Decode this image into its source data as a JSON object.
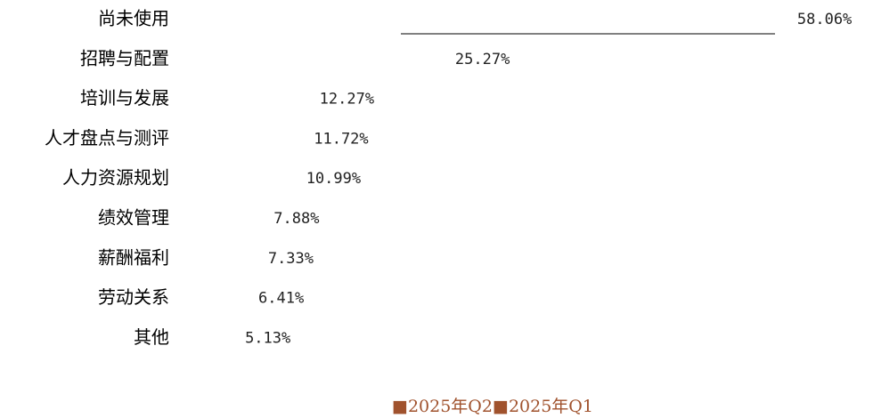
{
  "chart_data": {
    "type": "hbar",
    "categories": [
      "尚未使用",
      "招聘与配置",
      "培训与发展",
      "人才盘点与测评",
      "人力资源规划",
      "绩效管理",
      "薪酬福利",
      "劳动关系",
      "其他"
    ],
    "series": [
      {
        "name": "2025年Q2",
        "color": "#a0522d",
        "values": [
          58.06,
          25.27,
          12.27,
          11.72,
          10.99,
          7.88,
          7.33,
          6.41,
          5.13
        ],
        "value_labels": [
          "58.06%",
          "25.27%",
          "12.27%",
          "11.72%",
          "10.99%",
          "7.88%",
          "7.33%",
          "6.41%",
          "5.13%"
        ]
      },
      {
        "name": "2025年Q1",
        "color": "#a0522d",
        "values": [
          null,
          null,
          null,
          null,
          null,
          null,
          null,
          null,
          null
        ]
      }
    ]
  }
}
